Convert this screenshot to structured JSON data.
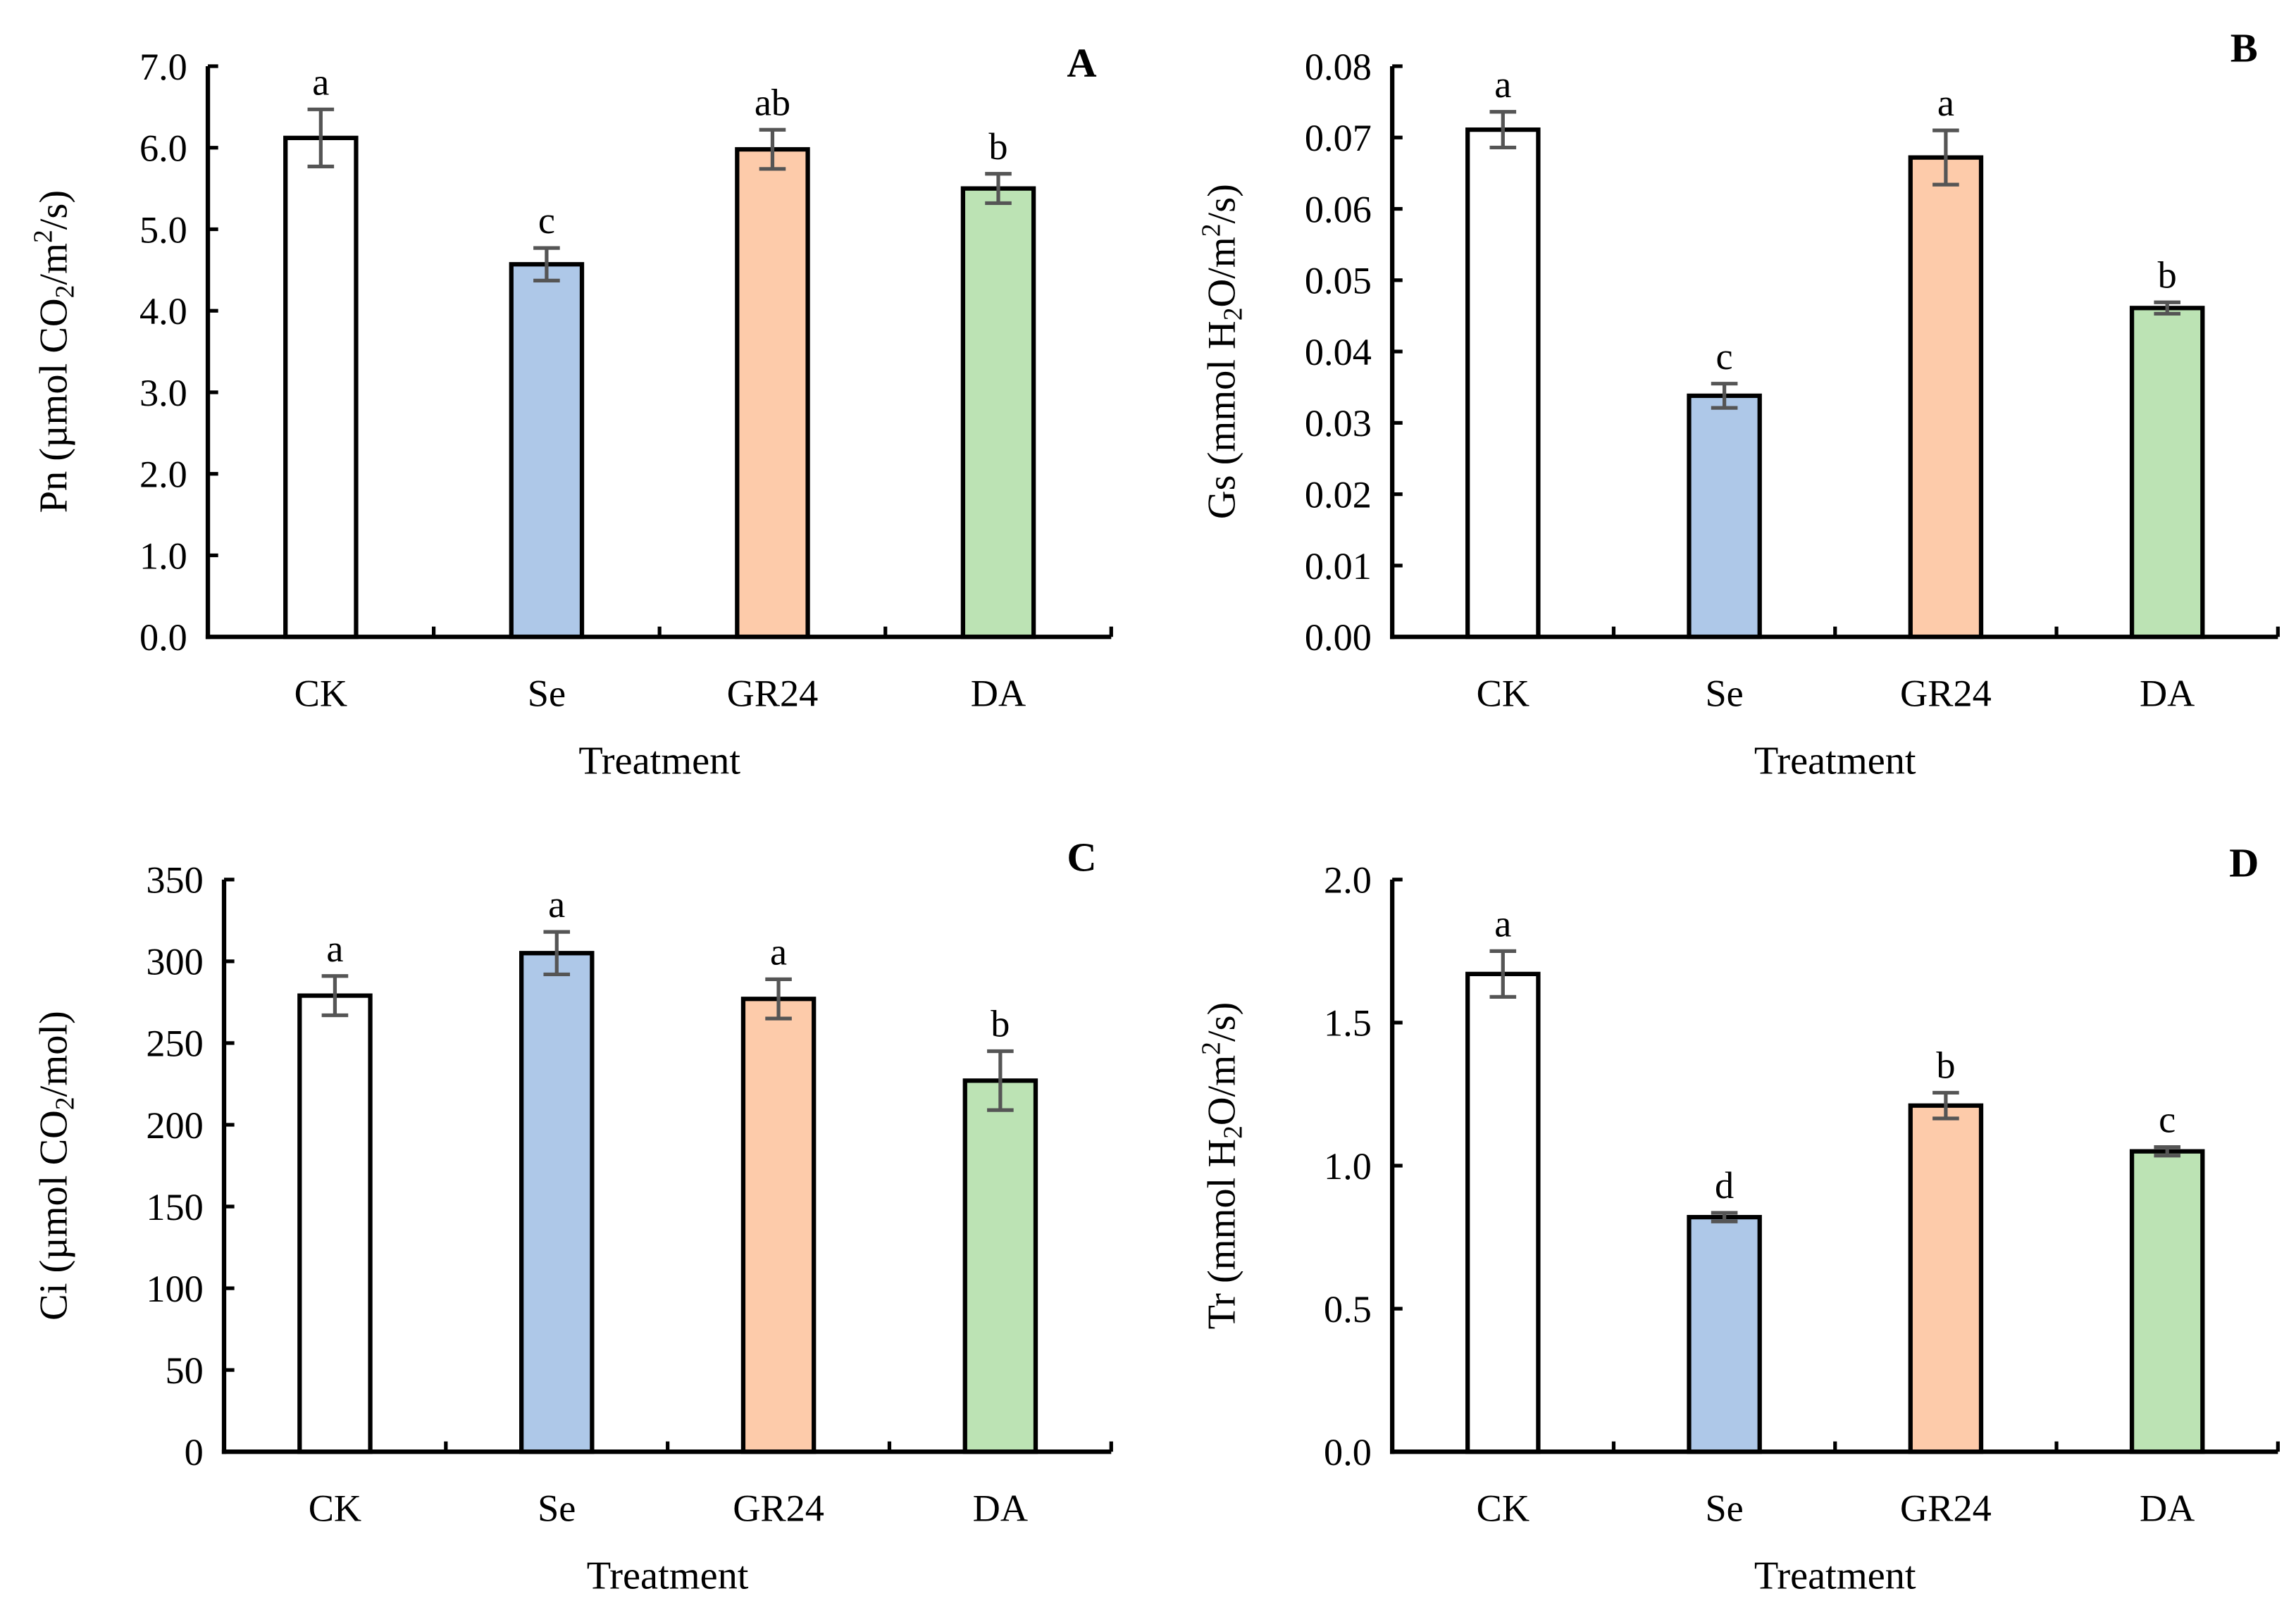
{
  "chart_data": [
    {
      "type": "bar",
      "panel_label": "A",
      "xlabel": "Treatment",
      "ylabel": "Pn (µmol CO2/m2/s)",
      "ylabel_parts": [
        "Pn (µmol CO",
        "2",
        "/m",
        "2",
        "/s)"
      ],
      "categories": [
        "CK",
        "Se",
        "GR24",
        "DA"
      ],
      "values": [
        6.12,
        4.57,
        5.98,
        5.5
      ],
      "errors": [
        0.35,
        0.2,
        0.24,
        0.18
      ],
      "significance": [
        "a",
        "c",
        "ab",
        "b"
      ],
      "ylim": [
        0,
        7
      ],
      "yticks": [
        "0.0",
        "1.0",
        "2.0",
        "3.0",
        "4.0",
        "5.0",
        "6.0",
        "7.0"
      ]
    },
    {
      "type": "bar",
      "panel_label": "B",
      "xlabel": "Treatment",
      "ylabel": "Gs (mmol H2O/m2/s)",
      "ylabel_parts": [
        "Gs (mmol H",
        "2",
        "O/m",
        "2",
        "/s)"
      ],
      "categories": [
        "CK",
        "Se",
        "GR24",
        "DA"
      ],
      "values": [
        0.0711,
        0.0338,
        0.0672,
        0.0461
      ],
      "errors": [
        0.0025,
        0.0017,
        0.0038,
        0.0008
      ],
      "significance": [
        "a",
        "c",
        "a",
        "b"
      ],
      "ylim": [
        0,
        0.08
      ],
      "yticks": [
        "0.00",
        "0.01",
        "0.02",
        "0.03",
        "0.04",
        "0.05",
        "0.06",
        "0.07",
        "0.08"
      ]
    },
    {
      "type": "bar",
      "panel_label": "C",
      "xlabel": "Treatment",
      "ylabel": "Ci (µmol CO2/mol)",
      "ylabel_parts": [
        "Ci (µmol CO",
        "2",
        "/mol)",
        "",
        ""
      ],
      "categories": [
        "CK",
        "Se",
        "GR24",
        "DA"
      ],
      "values": [
        279,
        305,
        277,
        227
      ],
      "errors": [
        12,
        13,
        12,
        18
      ],
      "significance": [
        "a",
        "a",
        "a",
        "b"
      ],
      "ylim": [
        0,
        350
      ],
      "yticks": [
        "0",
        "50",
        "100",
        "150",
        "200",
        "250",
        "300",
        "350"
      ]
    },
    {
      "type": "bar",
      "panel_label": "D",
      "xlabel": "Treatment",
      "ylabel": "Tr (mmol H2O/m2/s)",
      "ylabel_parts": [
        "Tr (mmol H",
        "2",
        "O/m",
        "2",
        "/s)"
      ],
      "categories": [
        "CK",
        "Se",
        "GR24",
        "DA"
      ],
      "values": [
        1.67,
        0.82,
        1.21,
        1.05
      ],
      "errors": [
        0.08,
        0.015,
        0.045,
        0.015
      ],
      "significance": [
        "a",
        "d",
        "b",
        "c"
      ],
      "ylim": [
        0,
        2.0
      ],
      "yticks": [
        "0.0",
        "0.5",
        "1.0",
        "1.5",
        "2.0"
      ]
    }
  ],
  "colors": {
    "bars": [
      "#ffffff",
      "#aec8e8",
      "#fdcbaa",
      "#bce3b4"
    ],
    "error": "#555555",
    "axis": "#000000"
  }
}
